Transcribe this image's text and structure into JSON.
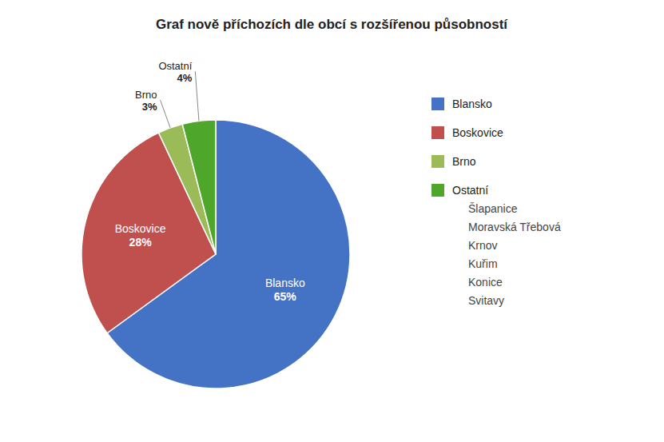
{
  "chart_data": {
    "type": "pie",
    "title": "Graf nově příchozích dle obcí s rozšířenou působností",
    "categories": [
      "Blansko",
      "Boskovice",
      "Brno",
      "Ostatní"
    ],
    "values": [
      65,
      28,
      3,
      4
    ],
    "value_labels": [
      "65%",
      "28%",
      "3%",
      "4%"
    ],
    "colors": [
      "#4472C4",
      "#C0504D",
      "#9BBB59",
      "#4EA72A"
    ],
    "data_labels": true,
    "legend": "right",
    "annotations": [
      "Šlapanice",
      "Moravská Třebová",
      "Krnov",
      "Kuřim",
      "Konice",
      "Svitavy"
    ]
  }
}
